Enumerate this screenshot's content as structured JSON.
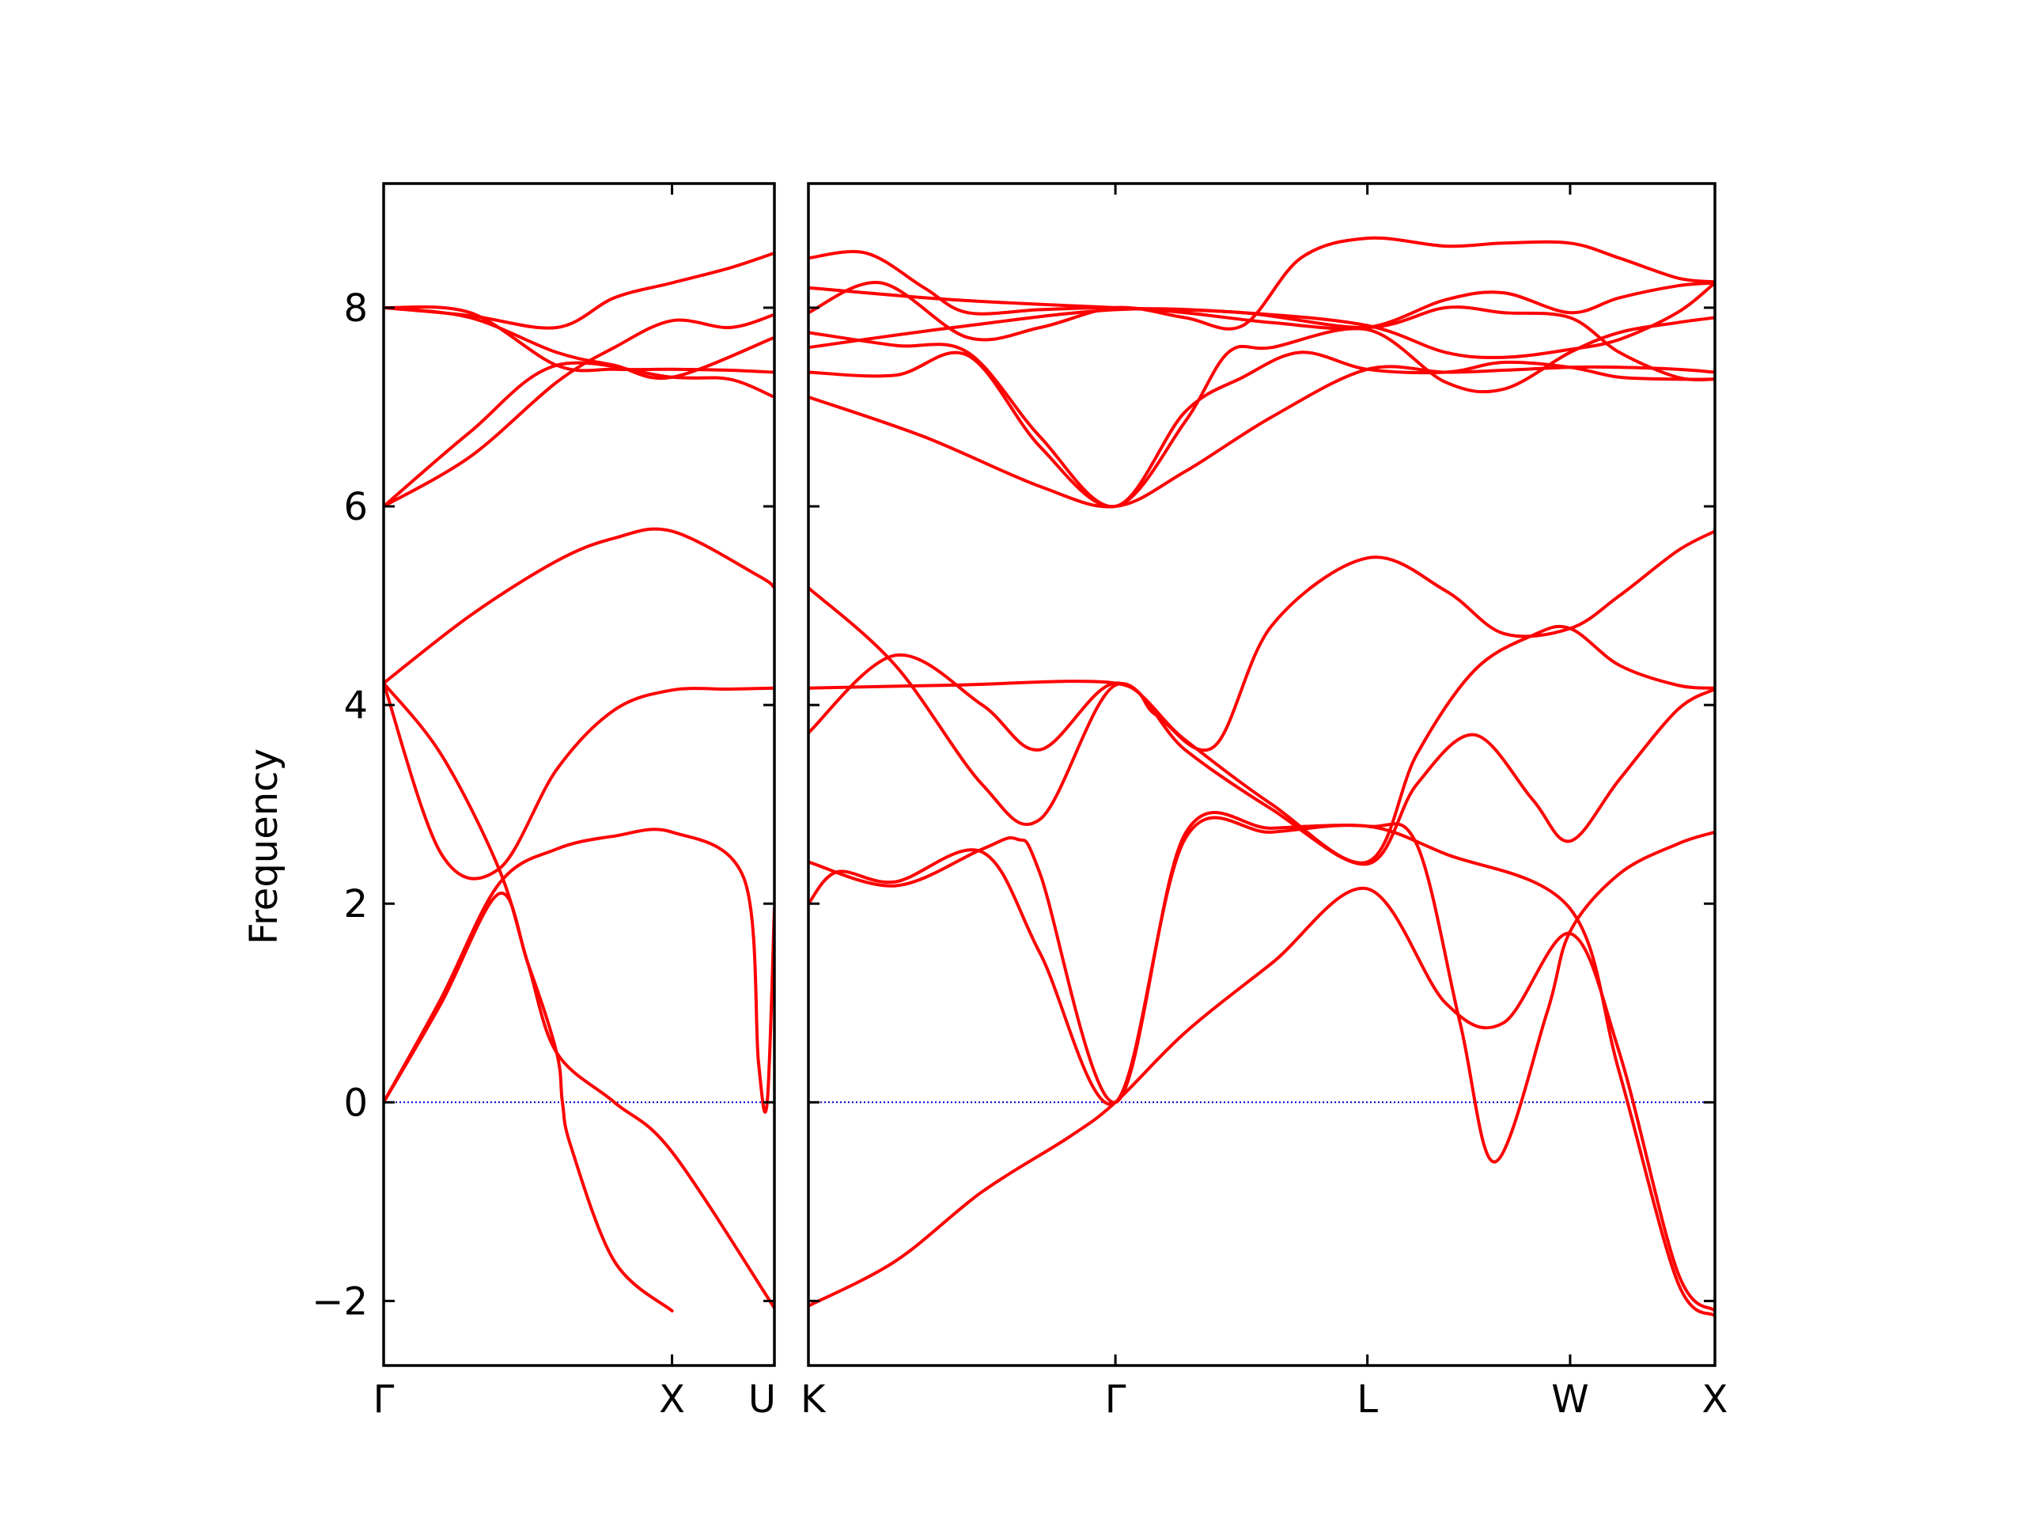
{
  "chart_data": {
    "type": "line",
    "title": "",
    "ylabel": "Frequency",
    "xlabel": "",
    "ylim": [
      -2.65,
      9.25
    ],
    "yticks": [
      -2,
      0,
      2,
      4,
      6,
      8
    ],
    "ytick_labels": [
      "−2",
      "0",
      "2",
      "4",
      "6",
      "8"
    ],
    "band_color": "#ff0000",
    "zero_line_color": "#0000cc",
    "grid": false,
    "legend": "none",
    "panels": [
      {
        "path": [
          "Γ",
          "X",
          "U"
        ],
        "x_ticks": [
          0,
          1
        ],
        "x_range": [
          0,
          1.355
        ],
        "bands": [
          {
            "x": [
              0,
              0.2,
              0.4,
              0.5,
              0.6,
              0.62,
              0.65,
              0.8,
              1.0
            ],
            "y": [
              0,
              1.0,
              2.1,
              1.4,
              0.5,
              0,
              -0.45,
              -1.6,
              -2.1
            ]
          },
          {
            "x": [
              0,
              0.2,
              0.4,
              0.6,
              0.8,
              1.0,
              1.25,
              1.3,
              1.33,
              1.355
            ],
            "y": [
              0,
              1.05,
              2.2,
              2.55,
              2.68,
              2.72,
              2.25,
              0.4,
              0,
              1.95
            ]
          },
          {
            "x": [
              0,
              0.2,
              0.4,
              0.5,
              0.6,
              0.8,
              1.0,
              1.355
            ],
            "y": [
              4.22,
              3.5,
              2.35,
              1.4,
              0.5,
              0,
              -0.5,
              -2.07
            ]
          },
          {
            "x": [
              0,
              0.2,
              0.4,
              0.6,
              0.8,
              1.0,
              1.2,
              1.355
            ],
            "y": [
              4.22,
              2.5,
              2.35,
              3.35,
              3.95,
              4.15,
              4.16,
              4.17
            ]
          },
          {
            "x": [
              0,
              0.3,
              0.6,
              0.8,
              1.0,
              1.3,
              1.355
            ],
            "y": [
              4.22,
              4.9,
              5.45,
              5.68,
              5.75,
              5.3,
              5.18
            ]
          },
          {
            "x": [
              0,
              0.3,
              0.6,
              0.8,
              1.0,
              1.2,
              1.355
            ],
            "y": [
              6.0,
              6.5,
              7.25,
              7.6,
              7.87,
              7.8,
              7.93
            ]
          },
          {
            "x": [
              0,
              0.3,
              0.6,
              1.0,
              1.2,
              1.355
            ],
            "y": [
              6.0,
              6.75,
              7.42,
              7.3,
              7.28,
              7.1
            ]
          },
          {
            "x": [
              0,
              0.3,
              0.6,
              0.8,
              1.0,
              1.2,
              1.355
            ],
            "y": [
              8.0,
              7.92,
              7.8,
              8.1,
              8.25,
              8.4,
              8.55
            ]
          },
          {
            "x": [
              0,
              0.3,
              0.6,
              0.8,
              1.0,
              1.2,
              1.355
            ],
            "y": [
              8.0,
              7.95,
              7.42,
              7.38,
              7.38,
              7.37,
              7.35
            ]
          },
          {
            "x": [
              0,
              0.3,
              0.6,
              0.8,
              1.0,
              1.355
            ],
            "y": [
              8.0,
              7.9,
              7.55,
              7.42,
              7.3,
              7.7
            ]
          }
        ]
      },
      {
        "path": [
          "K",
          "Γ",
          "L",
          "W",
          "X"
        ],
        "x_ticks": [
          0,
          1.06,
          1.93,
          2.63,
          3.13
        ],
        "x_range": [
          0,
          3.13
        ],
        "bands": [
          {
            "x": [
              0,
              0.3,
              0.6,
              0.9,
              1.06,
              1.3,
              1.6,
              1.93,
              2.2,
              2.4,
              2.63,
              2.8,
              3.0,
              3.13
            ],
            "y": [
              -2.05,
              -1.6,
              -0.9,
              -0.35,
              0,
              0.7,
              1.4,
              2.15,
              1.0,
              0.8,
              1.7,
              0.5,
              -1.7,
              -2.1
            ]
          },
          {
            "x": [
              0,
              0.1,
              0.3,
              0.6,
              0.8,
              1.06,
              1.3,
              1.6,
              1.93,
              2.2,
              2.63,
              2.8,
              3.0,
              3.13
            ],
            "y": [
              2.0,
              2.32,
              2.22,
              2.52,
              1.5,
              0,
              2.65,
              2.72,
              2.78,
              2.5,
              1.95,
              0.3,
              -1.8,
              -2.15
            ]
          },
          {
            "x": [
              0,
              0.3,
              0.6,
              0.72,
              0.8,
              1.06,
              1.3,
              1.6,
              1.93,
              2.1,
              2.25,
              2.37,
              2.55,
              2.63,
              2.8,
              3.0,
              3.13
            ],
            "y": [
              2.42,
              2.18,
              2.55,
              2.65,
              2.3,
              0,
              2.7,
              2.76,
              2.78,
              2.6,
              0.8,
              -0.6,
              0.9,
              1.72,
              2.3,
              2.6,
              2.72
            ]
          },
          {
            "x": [
              0,
              0.3,
              0.6,
              0.8,
              1.06,
              1.3,
              1.6,
              1.93,
              2.1,
              2.3,
              2.5,
              2.63,
              2.8,
              3.0,
              3.13
            ],
            "y": [
              5.18,
              4.4,
              3.2,
              2.85,
              4.2,
              3.55,
              2.95,
              2.4,
              3.2,
              3.7,
              3.05,
              2.63,
              3.25,
              3.95,
              4.16
            ]
          },
          {
            "x": [
              0,
              0.3,
              0.6,
              0.8,
              1.06,
              1.3,
              1.6,
              1.93,
              2.1,
              2.3,
              2.5,
              2.63,
              2.8,
              3.0,
              3.13
            ],
            "y": [
              3.72,
              4.5,
              4.0,
              3.55,
              4.22,
              3.65,
              3.0,
              2.42,
              3.5,
              4.35,
              4.7,
              4.77,
              4.4,
              4.2,
              4.17
            ]
          },
          {
            "x": [
              0,
              0.5,
              1.06,
              1.2,
              1.4,
              1.6,
              1.93,
              2.2,
              2.4,
              2.63,
              2.8,
              3.0,
              3.13
            ],
            "y": [
              4.17,
              4.2,
              4.22,
              3.9,
              3.58,
              4.8,
              5.48,
              5.15,
              4.72,
              4.77,
              5.1,
              5.55,
              5.75
            ]
          },
          {
            "x": [
              0,
              0.4,
              0.8,
              1.06,
              1.3,
              1.6,
              1.93,
              2.2,
              2.4,
              2.63,
              2.8,
              3.0,
              3.13
            ],
            "y": [
              7.1,
              6.7,
              6.2,
              6.0,
              6.35,
              6.9,
              7.38,
              7.35,
              7.37,
              7.4,
              7.4,
              7.38,
              7.35
            ]
          },
          {
            "x": [
              0,
              0.3,
              0.55,
              0.8,
              1.06,
              1.3,
              1.45,
              1.6,
              1.93,
              2.2,
              2.4,
              2.63,
              2.8,
              3.0,
              3.13
            ],
            "y": [
              7.35,
              7.32,
              7.52,
              6.6,
              6.0,
              6.85,
              7.55,
              7.6,
              7.78,
              7.25,
              7.18,
              7.55,
              7.75,
              7.85,
              7.9
            ]
          },
          {
            "x": [
              0,
              0.3,
              0.55,
              0.8,
              1.06,
              1.3,
              1.5,
              1.7,
              1.93,
              2.2,
              2.4,
              2.63,
              2.8,
              3.0,
              3.13
            ],
            "y": [
              7.75,
              7.62,
              7.55,
              6.7,
              6.0,
              6.95,
              7.3,
              7.55,
              7.38,
              7.35,
              7.45,
              7.4,
              7.3,
              7.28,
              7.28
            ]
          },
          {
            "x": [
              0,
              0.25,
              0.55,
              0.8,
              1.06,
              1.3,
              1.5,
              1.7,
              1.93,
              2.2,
              2.4,
              2.63,
              2.8,
              3.0,
              3.13
            ],
            "y": [
              7.95,
              8.25,
              7.7,
              7.8,
              8.0,
              7.9,
              7.82,
              8.5,
              8.7,
              8.62,
              8.65,
              8.65,
              8.5,
              8.3,
              8.26
            ]
          },
          {
            "x": [
              0,
              0.2,
              0.4,
              0.55,
              0.8,
              1.06,
              1.3,
              1.6,
              1.93,
              2.2,
              2.4,
              2.63,
              2.8,
              3.0,
              3.13
            ],
            "y": [
              8.5,
              8.55,
              8.2,
              7.95,
              7.98,
              8.0,
              7.95,
              7.85,
              7.8,
              8.08,
              8.15,
              7.95,
              8.1,
              8.22,
              8.25
            ]
          },
          {
            "x": [
              0,
              0.5,
              1.06,
              1.5,
              1.93,
              2.2,
              2.4,
              2.63,
              2.8,
              3.0,
              3.13
            ],
            "y": [
              8.2,
              8.08,
              8.0,
              7.95,
              7.8,
              8.0,
              7.95,
              7.9,
              7.55,
              7.3,
              7.28
            ]
          },
          {
            "x": [
              0,
              0.5,
              1.06,
              1.5,
              1.93,
              2.2,
              2.4,
              2.63,
              2.8,
              3.0,
              3.13
            ],
            "y": [
              7.6,
              7.8,
              7.98,
              7.95,
              7.82,
              7.55,
              7.5,
              7.58,
              7.68,
              7.95,
              8.25
            ]
          }
        ]
      }
    ]
  }
}
